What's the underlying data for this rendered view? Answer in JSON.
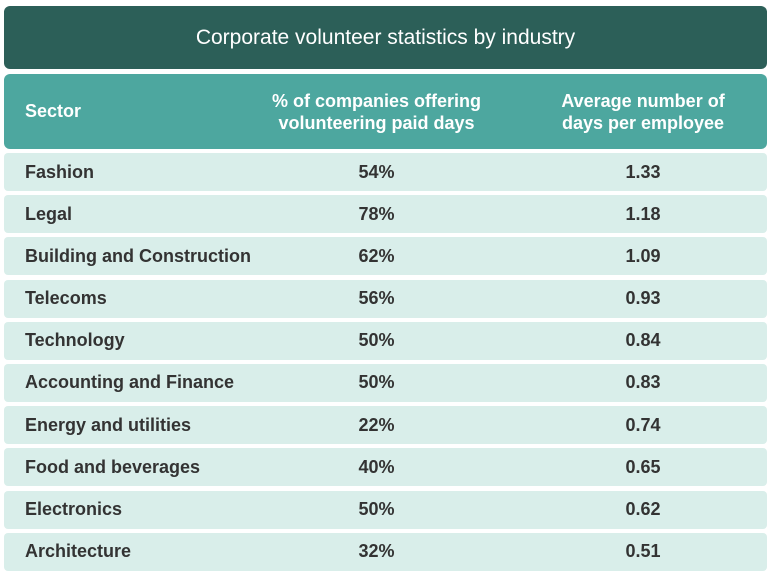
{
  "chart_data": {
    "type": "table",
    "title": "Corporate volunteer statistics by industry",
    "columns": [
      "Sector",
      "% of companies offering volunteering paid days",
      "Average number of days per employee"
    ],
    "header": {
      "sector": "Sector",
      "pct_line1": "% of companies offering",
      "pct_line2": "volunteering paid days",
      "days_line1": "Average number of",
      "days_line2": "days per employee"
    },
    "rows": [
      {
        "sector": "Fashion",
        "pct": "54%",
        "days": "1.33"
      },
      {
        "sector": "Legal",
        "pct": "78%",
        "days": "1.18"
      },
      {
        "sector": "Building and Construction",
        "pct": "62%",
        "days": "1.09"
      },
      {
        "sector": "Telecoms",
        "pct": "56%",
        "days": "0.93"
      },
      {
        "sector": "Technology",
        "pct": "50%",
        "days": "0.84"
      },
      {
        "sector": "Accounting and Finance",
        "pct": "50%",
        "days": "0.83"
      },
      {
        "sector": "Energy and utilities",
        "pct": "22%",
        "days": "0.74"
      },
      {
        "sector": "Food and beverages",
        "pct": "40%",
        "days": "0.65"
      },
      {
        "sector": "Electronics",
        "pct": "50%",
        "days": "0.62"
      },
      {
        "sector": "Architecture",
        "pct": "32%",
        "days": "0.51"
      }
    ]
  },
  "colors": {
    "title_bg": "#2c5f58",
    "header_bg": "#4da79f",
    "row_bg": "#d9eeea",
    "text": "#333333"
  }
}
